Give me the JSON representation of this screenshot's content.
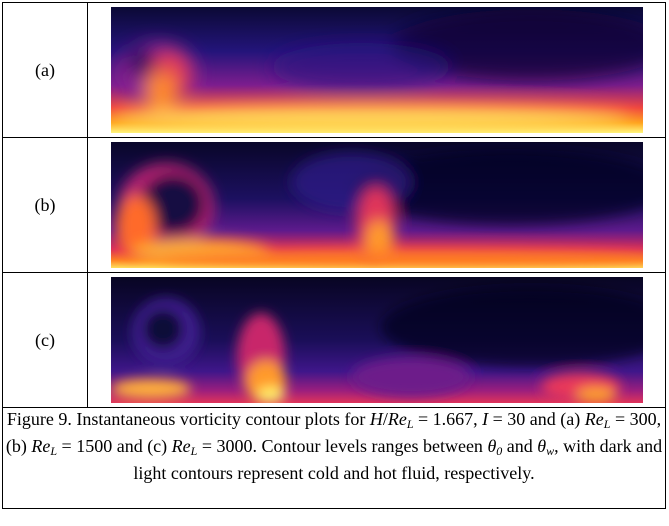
{
  "panels": [
    {
      "label": "(a)"
    },
    {
      "label": "(b)"
    },
    {
      "label": "(c)"
    }
  ],
  "caption": {
    "prefix": "Figure 9. Instantaneous vorticity contour plots for ",
    "var_H": "H",
    "slash": "/",
    "var_Re": "Re",
    "sub_L": "L",
    "eq1": " = 1.667, ",
    "var_I": "I",
    "eq2": " = 30 and (a) ",
    "val_a": " = 300, (b) ",
    "val_b": " = 1500 and (c) ",
    "val_c": " = 3000. Contour levels ranges between ",
    "theta": "θ",
    "sub_0": "0",
    "and": " and ",
    "sub_w": "w",
    "suffix": ", with dark and light contours represent cold and hot fluid, respectively."
  },
  "colors": {
    "cold": "#0a0630",
    "mid": "#3a1d8c",
    "warm": "#c0226b",
    "hot": "#ff7a1a",
    "hottest": "#fff47a"
  }
}
